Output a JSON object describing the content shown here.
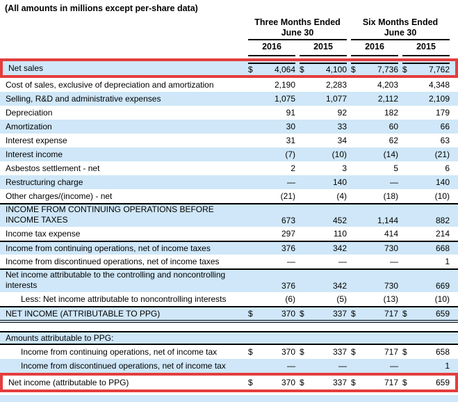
{
  "title": "(All amounts in millions except per-share data)",
  "colors": {
    "row_highlight_blue": "#cfe7f8",
    "annotation_box_red": "#e43d3d",
    "rule_black": "#000000"
  },
  "table": {
    "dollar_sign": "$",
    "groups": [
      {
        "title": "Three Months Ended",
        "subtitle": "June 30",
        "years": [
          "2016",
          "2015"
        ]
      },
      {
        "title": "Six Months Ended",
        "subtitle": "June 30",
        "years": [
          "2016",
          "2015"
        ]
      }
    ],
    "rows": [
      {
        "label": "Net sales",
        "dollar": true,
        "values": [
          "4,064",
          "4,100",
          "7,736",
          "7,762"
        ],
        "bg": "blue",
        "red_box": true,
        "col_rule": true
      },
      {
        "label": "Cost of sales, exclusive of depreciation and amortization",
        "values": [
          "2,190",
          "2,283",
          "4,203",
          "4,348"
        ],
        "bg": "white"
      },
      {
        "label": "Selling, R&D and administrative expenses",
        "values": [
          "1,075",
          "1,077",
          "2,112",
          "2,109"
        ],
        "bg": "blue"
      },
      {
        "label": "Depreciation",
        "values": [
          "91",
          "92",
          "182",
          "179"
        ],
        "bg": "white"
      },
      {
        "label": "Amortization",
        "values": [
          "30",
          "33",
          "60",
          "66"
        ],
        "bg": "blue"
      },
      {
        "label": "Interest expense",
        "values": [
          "31",
          "34",
          "62",
          "63"
        ],
        "bg": "white"
      },
      {
        "label": "Interest income",
        "values": [
          "(7)",
          "(10)",
          "(14)",
          "(21)"
        ],
        "bg": "blue"
      },
      {
        "label": "Asbestos settlement - net",
        "values": [
          "2",
          "3",
          "5",
          "6"
        ],
        "bg": "white"
      },
      {
        "label": "Restructuring charge",
        "values": [
          "—",
          "140",
          "—",
          "140"
        ],
        "bg": "blue"
      },
      {
        "label": "Other charges/(income) - net",
        "values": [
          "(21)",
          "(4)",
          "(18)",
          "(10)"
        ],
        "bg": "white"
      },
      {
        "label": "INCOME FROM CONTINUING OPERATIONS BEFORE\nINCOME TAXES",
        "values": [
          "673",
          "452",
          "1,144",
          "882"
        ],
        "bg": "blue",
        "border_top": true,
        "two_line": true
      },
      {
        "label": "Income tax expense",
        "values": [
          "297",
          "110",
          "414",
          "214"
        ],
        "bg": "white"
      },
      {
        "label": "Income from continuing operations, net of income taxes",
        "values": [
          "376",
          "342",
          "730",
          "668"
        ],
        "bg": "blue",
        "border_top": true
      },
      {
        "label": "Income from discontinued operations, net of income taxes",
        "values": [
          "—",
          "—",
          "—",
          "1"
        ],
        "bg": "white"
      },
      {
        "label": "Net income attributable to the controlling and noncontrolling\ninterests",
        "values": [
          "376",
          "342",
          "730",
          "669"
        ],
        "bg": "blue",
        "border_top": true,
        "two_line": true
      },
      {
        "label": "Less: Net income attributable to noncontrolling interests",
        "values": [
          "(6)",
          "(5)",
          "(13)",
          "(10)"
        ],
        "bg": "white",
        "indent": true
      },
      {
        "label": "NET INCOME (ATTRIBUTABLE TO PPG)",
        "dollar": true,
        "values": [
          "370",
          "337",
          "717",
          "659"
        ],
        "bg": "blue",
        "border_top": true,
        "double_bottom": true
      },
      {
        "label": "Amounts attributable to PPG:",
        "values": [
          "",
          "",
          "",
          ""
        ],
        "bg": "blue",
        "border_top": true,
        "border_bottom": true,
        "section_gap_before": true
      },
      {
        "label": "Income from continuing operations, net of income tax",
        "dollar": true,
        "values": [
          "370",
          "337",
          "717",
          "658"
        ],
        "bg": "white",
        "indent": true
      },
      {
        "label": "Income from discontinued operations, net of income tax",
        "values": [
          "—",
          "—",
          "—",
          "1"
        ],
        "bg": "blue",
        "indent": true
      },
      {
        "label": "Net income (attributable to PPG)",
        "dollar": true,
        "values": [
          "370",
          "337",
          "717",
          "659"
        ],
        "bg": "white",
        "red_box": true
      }
    ]
  }
}
